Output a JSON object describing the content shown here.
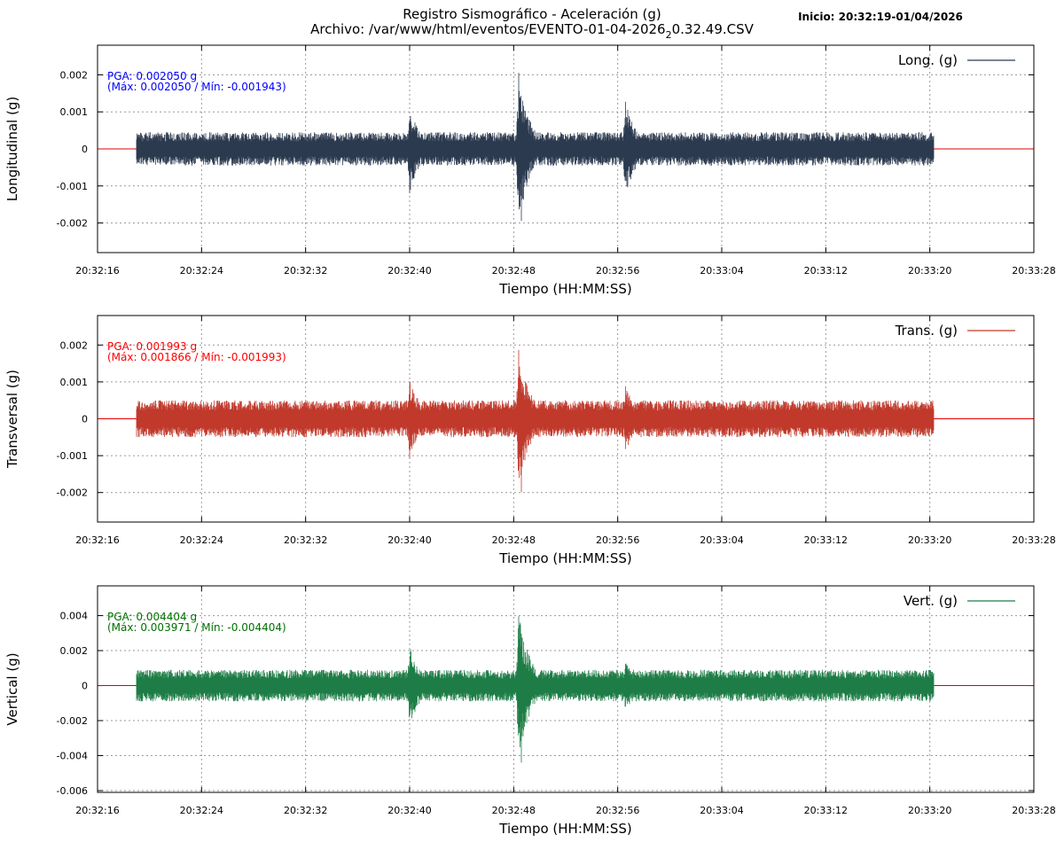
{
  "header": {
    "title_line1": "Registro Sismográfico - Aceleración (g)",
    "title_line2_pre": "Archivo: /var/www/html/eventos/EVENTO-01-04-2026",
    "title_line2_sub": "2",
    "title_line2_post": "0.32.49.CSV",
    "start_label": "Inicio: 20:32:19-01/04/2026"
  },
  "chart_data": [
    {
      "type": "line",
      "ylabel": "Longitudinal (g)",
      "xlabel": "Tiempo (HH:MM:SS)",
      "legend": "Long. (g)",
      "legend_position": "top-right",
      "color": "#2b3a4f",
      "zero_line_color": "#e00000",
      "stats_color": "#0000ff",
      "stats_line1": "PGA: 0.002050 g",
      "stats_line2": "(Máx: 0.002050 / Mín: -0.001943)",
      "pga": 0.00205,
      "max": 0.00205,
      "min": -0.001943,
      "ylim": [
        -0.0028,
        0.0028
      ],
      "yticks": [
        0.002,
        0.001,
        0,
        -0.001,
        -0.002
      ],
      "ytick_labels": [
        "0.002",
        "0.001",
        "0",
        "-0.001",
        "-0.002"
      ],
      "xlim": [
        "20:32:16",
        "20:33:28"
      ],
      "xticks": [
        "20:32:16",
        "20:32:24",
        "20:32:32",
        "20:32:40",
        "20:32:48",
        "20:32:56",
        "20:33:04",
        "20:33:12",
        "20:33:20",
        "20:33:28"
      ],
      "record_span": [
        "20:32:19",
        "20:33:20.3"
      ],
      "grid": true,
      "noise_amplitude": 0.00045,
      "events": [
        {
          "time": "20:32:40",
          "amplitude": 0.0012
        },
        {
          "time": "20:32:48.4",
          "amplitude": 0.00205
        },
        {
          "time": "20:32:56.6",
          "amplitude": 0.0013
        }
      ]
    },
    {
      "type": "line",
      "ylabel": "Transversal (g)",
      "xlabel": "Tiempo (HH:MM:SS)",
      "legend": "Trans. (g)",
      "legend_position": "top-right",
      "color": "#c0392b",
      "zero_line_color": "#e00000",
      "stats_color": "#ff0000",
      "stats_line1": "PGA: 0.001993 g",
      "stats_line2": "(Máx: 0.001866 / Mín: -0.001993)",
      "pga": 0.001993,
      "max": 0.001866,
      "min": -0.001993,
      "ylim": [
        -0.0028,
        0.0028
      ],
      "yticks": [
        0.002,
        0.001,
        0,
        -0.001,
        -0.002
      ],
      "ytick_labels": [
        "0.002",
        "0.001",
        "0",
        "-0.001",
        "-0.002"
      ],
      "xlim": [
        "20:32:16",
        "20:33:28"
      ],
      "xticks": [
        "20:32:16",
        "20:32:24",
        "20:32:32",
        "20:32:40",
        "20:32:48",
        "20:32:56",
        "20:33:04",
        "20:33:12",
        "20:33:20",
        "20:33:28"
      ],
      "record_span": [
        "20:32:19",
        "20:33:20.3"
      ],
      "grid": true,
      "noise_amplitude": 0.0005,
      "events": [
        {
          "time": "20:32:40",
          "amplitude": 0.0011
        },
        {
          "time": "20:32:48.4",
          "amplitude": 0.0019
        },
        {
          "time": "20:32:56.6",
          "amplitude": 0.0009
        }
      ]
    },
    {
      "type": "line",
      "ylabel": "Vertical (g)",
      "xlabel": "Tiempo (HH:MM:SS)",
      "legend": "Vert. (g)",
      "legend_position": "top-right",
      "color": "#1e7d46",
      "zero_line_color": "#e00000",
      "stats_color": "#007000",
      "stats_line1": "PGA: 0.004404 g",
      "stats_line2": "(Máx: 0.003971 / Mín: -0.004404)",
      "pga": 0.004404,
      "max": 0.003971,
      "min": -0.004404,
      "ylim": [
        -0.0061,
        0.0057
      ],
      "yticks": [
        0.004,
        0.002,
        0,
        -0.002,
        -0.004,
        -0.006
      ],
      "ytick_labels": [
        "0.004",
        "0.002",
        "0",
        "-0.002",
        "-0.004",
        "-0.006"
      ],
      "xlim": [
        "20:32:16",
        "20:33:28"
      ],
      "xticks": [
        "20:32:16",
        "20:32:24",
        "20:32:32",
        "20:32:40",
        "20:32:48",
        "20:32:56",
        "20:33:04",
        "20:33:12",
        "20:33:20",
        "20:33:28"
      ],
      "record_span": [
        "20:32:19",
        "20:33:20.3"
      ],
      "grid": true,
      "noise_amplitude": 0.0009,
      "events": [
        {
          "time": "20:32:40",
          "amplitude": 0.0024
        },
        {
          "time": "20:32:48.4",
          "amplitude": 0.0042
        },
        {
          "time": "20:32:56.6",
          "amplitude": 0.0015
        }
      ]
    }
  ]
}
